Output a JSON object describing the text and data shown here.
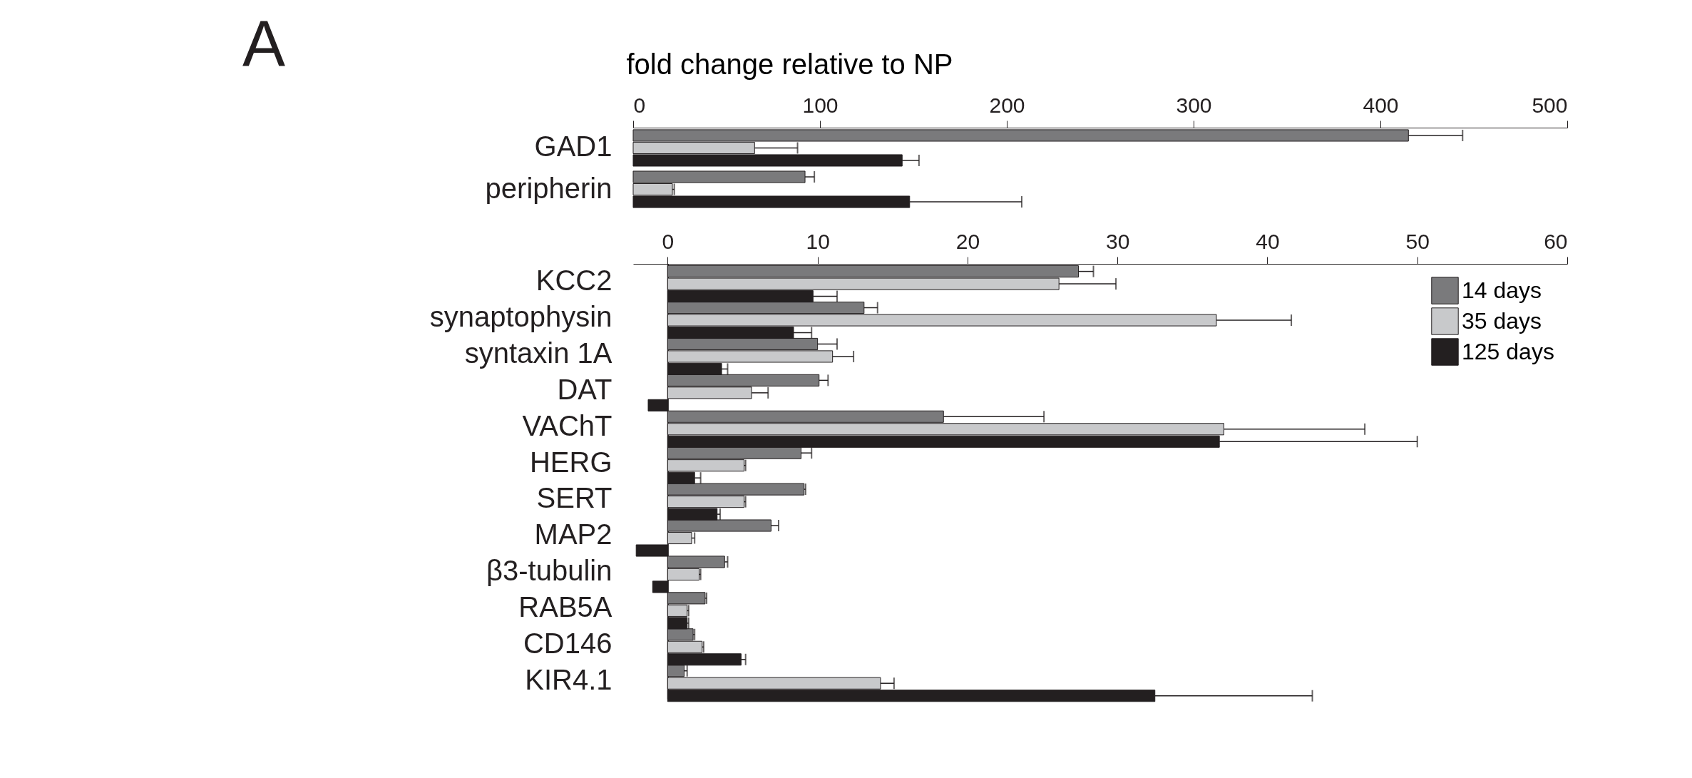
{
  "chart_data": [
    {
      "type": "bar",
      "orientation": "horizontal",
      "annotations": [
        "A"
      ],
      "xlabel": "fold change relative to NP",
      "categories": [
        "GAD1",
        "peripherin"
      ],
      "xlim": [
        0,
        500
      ],
      "xticks": [
        0,
        100,
        200,
        300,
        400,
        500
      ],
      "grid": false,
      "series": [
        {
          "color": "#7a7a7c",
          "values": [
            415,
            92
          ],
          "errors": [
            [
              415,
              444
            ],
            [
              92,
              97
            ]
          ]
        },
        {
          "color": "#c8c9cb",
          "values": [
            65,
            21
          ],
          "errors": [
            [
              65,
              88
            ],
            [
              21,
              22
            ]
          ]
        },
        {
          "color": "#231f20",
          "values": [
            144,
            148
          ],
          "errors": [
            [
              144,
              153
            ],
            [
              148,
              208
            ]
          ]
        }
      ]
    },
    {
      "type": "bar",
      "orientation": "horizontal",
      "categories": [
        "KCC2",
        "synaptophysin",
        "syntaxin 1A",
        "DAT",
        "VAChT",
        "HERG",
        "SERT",
        "MAP2",
        "β3-tubulin",
        "RAB5A",
        "CD146",
        "KIR4.1"
      ],
      "xlim": [
        -2.3,
        60
      ],
      "xticks": [
        0,
        10,
        20,
        30,
        40,
        50,
        60
      ],
      "grid": false,
      "legend": "top right",
      "series": [
        {
          "name": "14 days",
          "color": "#7a7a7c",
          "values": [
            27.4,
            13.1,
            10.0,
            10.1,
            18.4,
            8.9,
            9.1,
            6.9,
            3.8,
            2.5,
            1.7,
            1.1
          ],
          "errors": [
            [
              27.4,
              28.4
            ],
            [
              13.1,
              14.0
            ],
            [
              10.0,
              11.3
            ],
            [
              10.1,
              10.7
            ],
            [
              18.4,
              25.1
            ],
            [
              8.9,
              9.6
            ],
            [
              9.1,
              9.2
            ],
            [
              6.9,
              7.4
            ],
            [
              3.8,
              4.0
            ],
            [
              2.5,
              2.6
            ],
            [
              1.7,
              1.8
            ],
            [
              1.1,
              1.3
            ]
          ]
        },
        {
          "name": "35 days",
          "color": "#c8c9cb",
          "values": [
            26.1,
            36.6,
            11.0,
            5.6,
            37.1,
            5.1,
            5.1,
            1.6,
            2.1,
            1.3,
            2.3,
            14.2
          ],
          "errors": [
            [
              26.1,
              29.9
            ],
            [
              36.6,
              41.6
            ],
            [
              11.0,
              12.4
            ],
            [
              5.6,
              6.7
            ],
            [
              37.1,
              46.5
            ],
            [
              5.1,
              5.2
            ],
            [
              5.1,
              5.2
            ],
            [
              1.6,
              1.8
            ],
            [
              2.1,
              2.2
            ],
            [
              1.3,
              1.4
            ],
            [
              2.3,
              2.4
            ],
            [
              14.2,
              15.1
            ]
          ]
        },
        {
          "name": "125 days",
          "color": "#231f20",
          "values": [
            9.7,
            8.4,
            3.6,
            -1.3,
            36.8,
            1.8,
            3.3,
            -2.1,
            -1.0,
            1.3,
            4.9,
            32.5
          ],
          "errors": [
            [
              9.7,
              11.3
            ],
            [
              8.4,
              9.6
            ],
            [
              3.6,
              4.0
            ],
            null,
            [
              36.8,
              50.0
            ],
            [
              1.8,
              2.2
            ],
            [
              3.3,
              3.5
            ],
            null,
            null,
            [
              1.3,
              1.4
            ],
            [
              4.9,
              5.2
            ],
            [
              32.5,
              43.0
            ]
          ]
        }
      ]
    }
  ]
}
